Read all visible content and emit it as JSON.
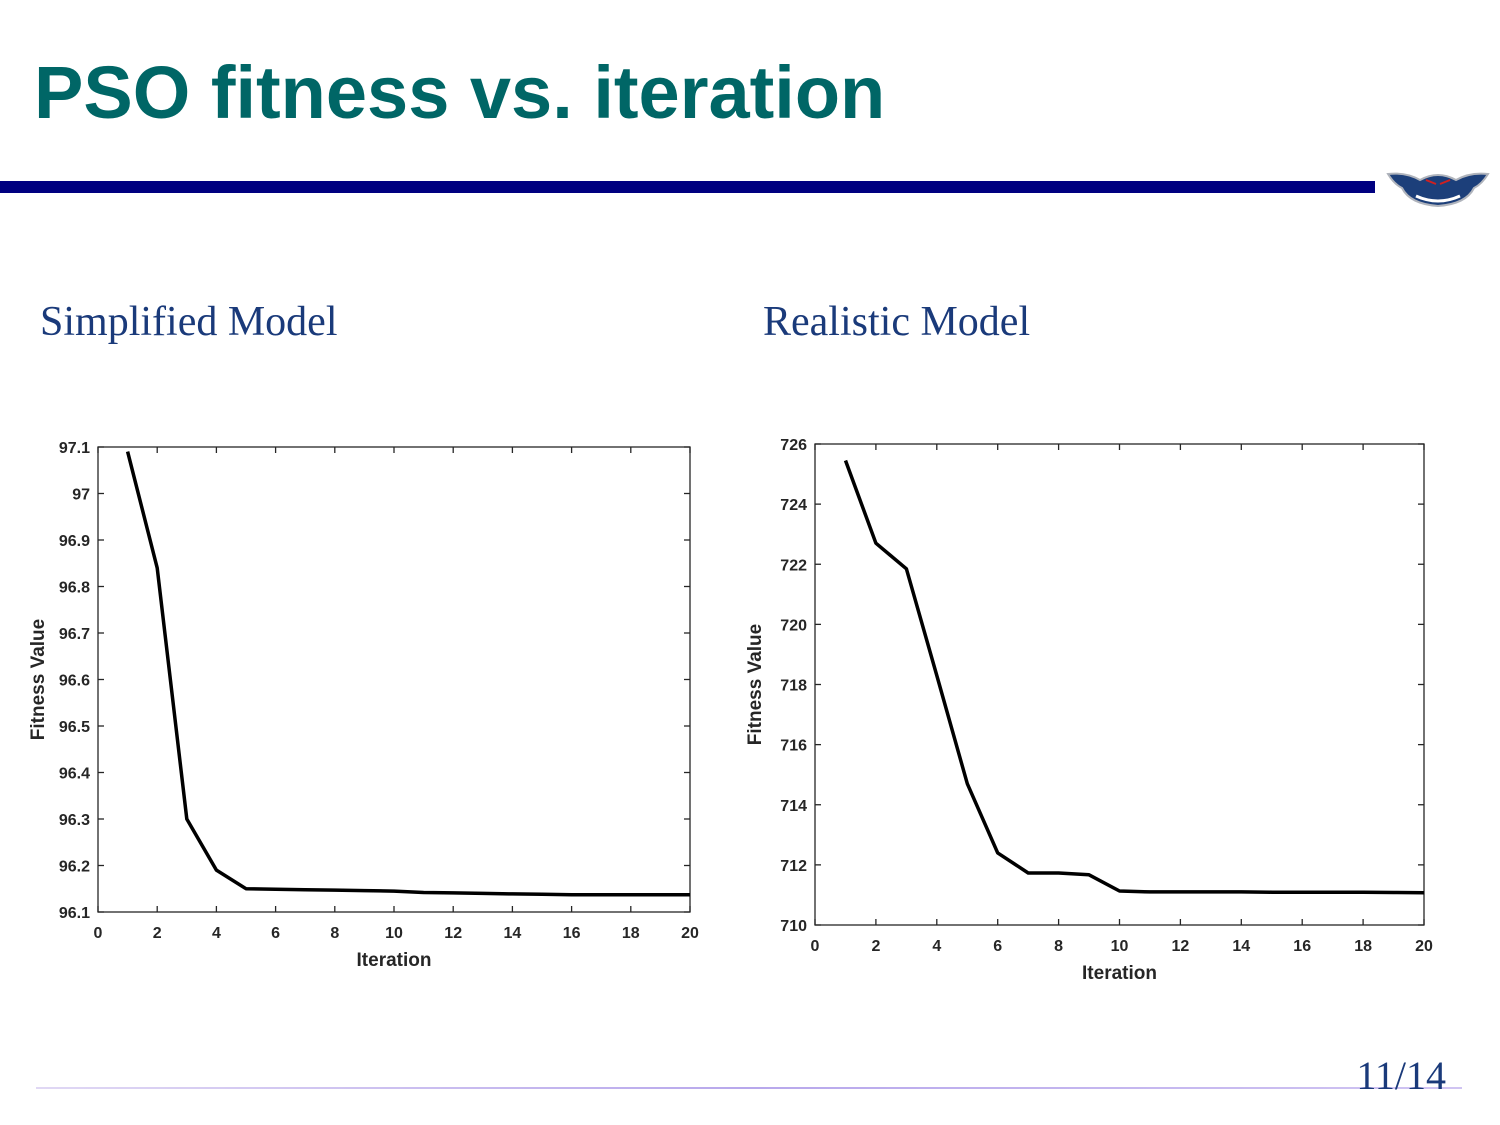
{
  "slide": {
    "title": "PSO fitness vs. iteration",
    "page_number": "11/14",
    "colors": {
      "title": "#006666",
      "rule": "#000080",
      "subtitle": "#1a3a7a"
    },
    "logo": "owl-logo"
  },
  "chart_data": [
    {
      "type": "line",
      "panel_title": "Simplified Model",
      "xlabel": "Iteration",
      "ylabel": "Fitness Value",
      "xlim": [
        0,
        20
      ],
      "ylim": [
        96.1,
        97.1
      ],
      "xticks": [
        "0",
        "2",
        "4",
        "6",
        "8",
        "10",
        "12",
        "14",
        "16",
        "18",
        "20"
      ],
      "yticks": [
        "96.1",
        "96.2",
        "96.3",
        "96.4",
        "96.5",
        "96.6",
        "96.7",
        "96.8",
        "96.9",
        "97",
        "97.1"
      ],
      "grid": false,
      "x": [
        1,
        2,
        3,
        4,
        5,
        6,
        7,
        8,
        9,
        10,
        11,
        12,
        13,
        14,
        15,
        16,
        17,
        18,
        19,
        20
      ],
      "y": [
        97.09,
        96.84,
        96.3,
        96.19,
        96.15,
        96.149,
        96.148,
        96.147,
        96.146,
        96.145,
        96.142,
        96.141,
        96.14,
        96.139,
        96.138,
        96.137,
        96.137,
        96.137,
        96.137,
        96.137
      ]
    },
    {
      "type": "line",
      "panel_title": "Realistic Model",
      "xlabel": "Iteration",
      "ylabel": "Fitness Value",
      "xlim": [
        0,
        20
      ],
      "ylim": [
        710,
        726
      ],
      "xticks": [
        "0",
        "2",
        "4",
        "6",
        "8",
        "10",
        "12",
        "14",
        "16",
        "18",
        "20"
      ],
      "yticks": [
        "710",
        "712",
        "714",
        "716",
        "718",
        "720",
        "722",
        "724",
        "726"
      ],
      "grid": false,
      "x": [
        1,
        2,
        3,
        4,
        5,
        6,
        7,
        8,
        9,
        10,
        11,
        12,
        13,
        14,
        15,
        16,
        17,
        18,
        19,
        20
      ],
      "y": [
        725.45,
        722.7,
        721.85,
        718.3,
        714.7,
        712.4,
        711.73,
        711.73,
        711.67,
        711.13,
        711.1,
        711.1,
        711.1,
        711.1,
        711.09,
        711.09,
        711.09,
        711.09,
        711.08,
        711.07
      ]
    }
  ]
}
